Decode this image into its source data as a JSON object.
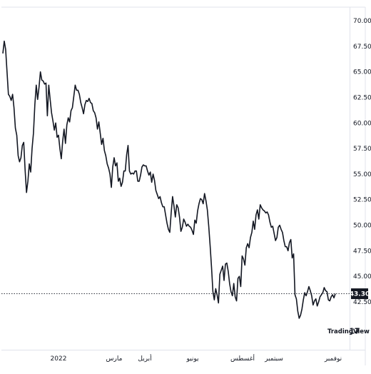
{
  "chart_data": {
    "type": "line",
    "title": "",
    "xlabel": "",
    "ylabel": "",
    "ylim": [
      40,
      70.5
    ],
    "y_ticks": [
      "70.00",
      "67.50",
      "65.00",
      "62.50",
      "60.00",
      "57.50",
      "55.00",
      "52.50",
      "50.00",
      "47.50",
      "45.00",
      "42.50"
    ],
    "x_ticks": [
      "2022",
      "مارس",
      "أبريل",
      "يونيو",
      "أغسطس",
      "سبتمبر",
      "نوفمبر"
    ],
    "last_price": 43.3,
    "last_price_label": "43.30",
    "grid": false,
    "series": [
      {
        "values": [
          66.8,
          68.0,
          67.2,
          65.0,
          62.8,
          62.6,
          62.2,
          62.8,
          61.5,
          59.5,
          58.8,
          56.8,
          56.2,
          56.6,
          57.8,
          58.1,
          55.4,
          53.2,
          54.3,
          56.0,
          55.2,
          57.5,
          59.0,
          61.8,
          63.7,
          62.3,
          63.5,
          65.0,
          64.2,
          64.1,
          63.8,
          63.9,
          60.7,
          63.7,
          62.3,
          61.0,
          60.2,
          59.3,
          60.0,
          58.6,
          58.8,
          57.5,
          56.5,
          58.2,
          59.4,
          58.0,
          59.8,
          60.5,
          60.1,
          61.2,
          61.5,
          62.6,
          63.7,
          63.2,
          63.2,
          62.8,
          62.0,
          61.5,
          60.9,
          61.8,
          62.2,
          62.1,
          62.4,
          62.0,
          61.9,
          61.2,
          61.0,
          60.5,
          59.4,
          60.1,
          59.0,
          57.9,
          58.5,
          57.3,
          56.8,
          56.0,
          55.6,
          55.0,
          53.7,
          55.7,
          56.6,
          55.8,
          56.1,
          54.3,
          54.6,
          53.8,
          54.2,
          55.3,
          55.3,
          56.9,
          57.8,
          55.3,
          55.0,
          55.1,
          55.0,
          55.3,
          55.3,
          54.3,
          54.3,
          54.9,
          55.7,
          55.9,
          55.8,
          55.8,
          55.3,
          54.9,
          55.2,
          54.2,
          55.0,
          54.4,
          53.4,
          53.0,
          52.6,
          52.8,
          52.2,
          51.8,
          51.8,
          51.0,
          50.2,
          49.6,
          49.3,
          51.2,
          52.8,
          51.9,
          50.8,
          52.0,
          51.7,
          50.8,
          49.4,
          49.8,
          50.6,
          50.3,
          49.9,
          50.1,
          49.9,
          49.8,
          49.5,
          49.1,
          50.5,
          50.2,
          51.4,
          52.1,
          52.6,
          52.5,
          52.1,
          53.1,
          52.4,
          51.5,
          49.9,
          48.0,
          45.9,
          43.5,
          42.7,
          43.8,
          43.2,
          42.4,
          45.2,
          45.6,
          46.0,
          44.6,
          46.2,
          46.3,
          45.5,
          44.3,
          43.5,
          43.1,
          44.3,
          43.0,
          42.6,
          44.8,
          45.0,
          44.0,
          47.0,
          46.7,
          46.1,
          47.8,
          48.2,
          47.8,
          48.8,
          49.3,
          50.4,
          49.6,
          51.0,
          51.5,
          50.6,
          52.0,
          51.7,
          51.5,
          51.4,
          51.2,
          51.3,
          51.0,
          50.3,
          49.8,
          49.9,
          49.2,
          48.5,
          48.8,
          49.8,
          50.0,
          49.6,
          49.3,
          48.5,
          47.9,
          47.9,
          47.5,
          48.3,
          48.6,
          46.8,
          47.2,
          43.2,
          42.8,
          41.6,
          40.9,
          41.2,
          41.8,
          42.7,
          43.4,
          43.1,
          43.5,
          44.0,
          43.6,
          43.1,
          42.2,
          42.6,
          42.8,
          42.1,
          42.5,
          43.0,
          43.2,
          43.4,
          43.9,
          43.6,
          43.5,
          42.7,
          42.6,
          43.0,
          43.2,
          42.9,
          43.3
        ]
      }
    ]
  },
  "branding": {
    "logo_text": "TradingView",
    "logo_mark": "17"
  }
}
